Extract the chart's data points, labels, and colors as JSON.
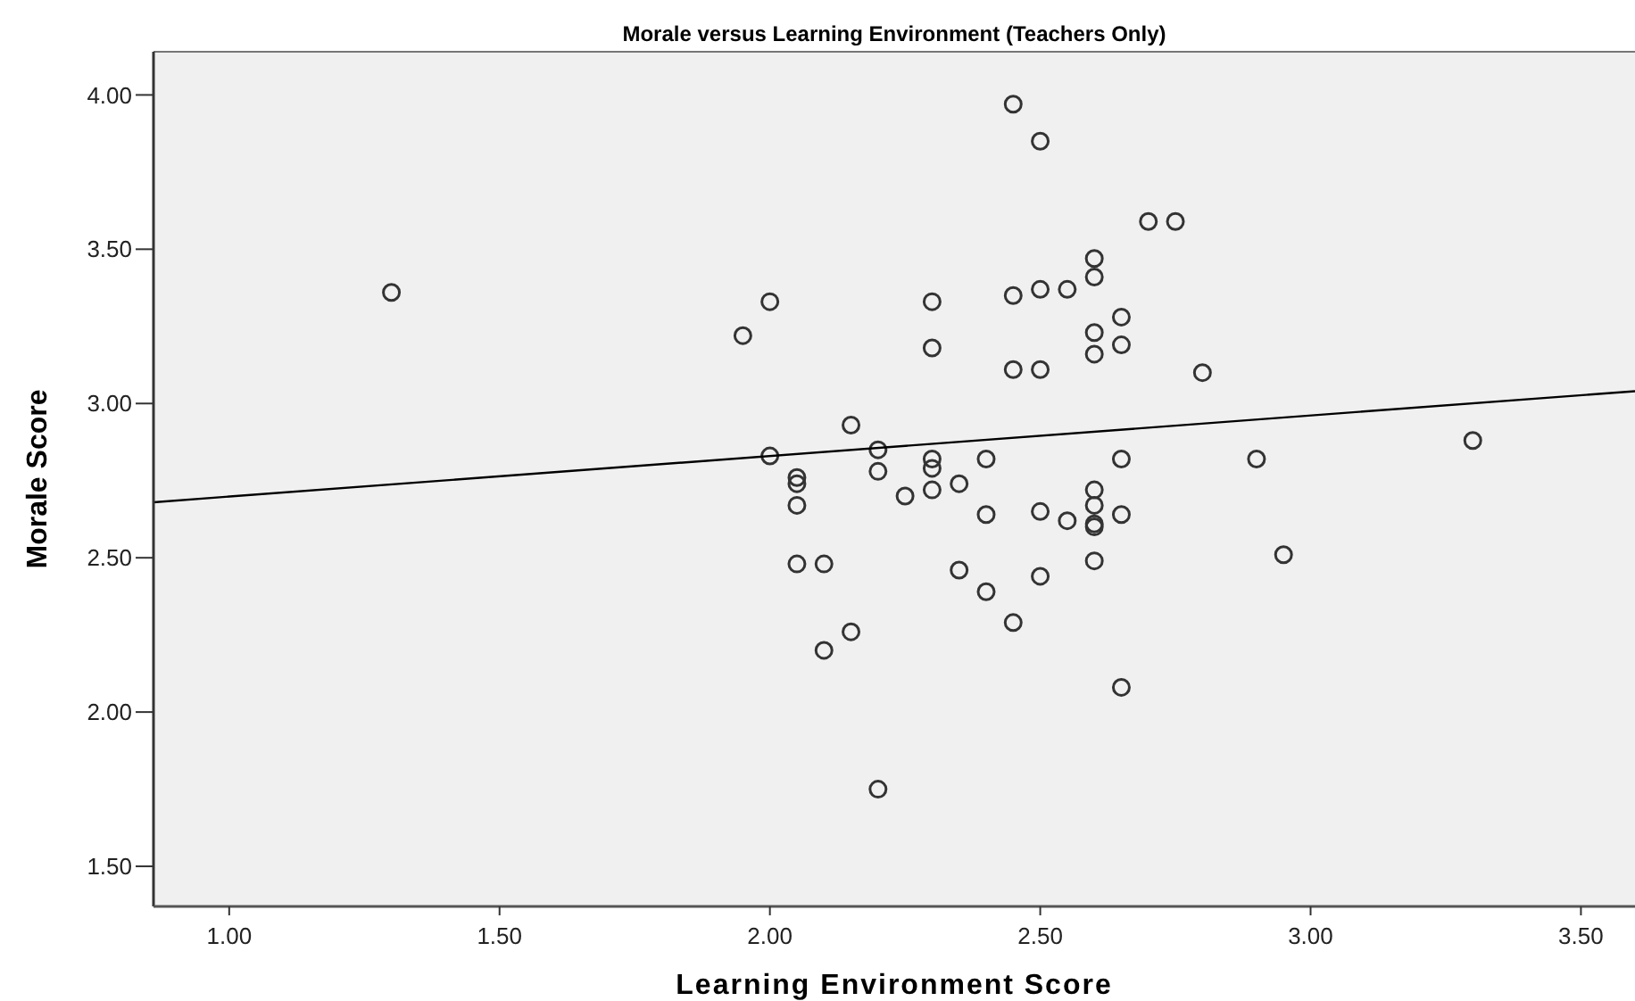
{
  "chart_data": {
    "type": "scatter",
    "title": "Morale versus Learning Environment (Teachers Only)",
    "xlabel": "Learning Environment Score",
    "ylabel": "Morale Score",
    "xlim": [
      0.86,
      3.6
    ],
    "ylim": [
      1.37,
      4.14
    ],
    "xticks": [
      {
        "value": 1,
        "label": "1.00"
      },
      {
        "value": 1.5,
        "label": "1.50"
      },
      {
        "value": 2,
        "label": "2.00"
      },
      {
        "value": 2.5,
        "label": "2.50"
      },
      {
        "value": 3,
        "label": "3.00"
      },
      {
        "value": 3.5,
        "label": "3.50"
      }
    ],
    "yticks": [
      {
        "value": 1.5,
        "label": "1.50"
      },
      {
        "value": 2,
        "label": "2.00"
      },
      {
        "value": 2.5,
        "label": "2.50"
      },
      {
        "value": 3,
        "label": "3.00"
      },
      {
        "value": 3.5,
        "label": "3.50"
      },
      {
        "value": 4,
        "label": "4.00"
      }
    ],
    "grid": false,
    "marker": "circle",
    "series": [
      {
        "color": "#333333",
        "x": [
          1.3,
          2.0,
          1.95,
          2.0,
          2.05,
          2.05,
          2.05,
          2.05,
          2.1,
          2.1,
          2.15,
          2.15,
          2.2,
          2.2,
          2.2,
          2.25,
          2.3,
          2.3,
          2.3,
          2.3,
          2.3,
          2.35,
          2.35,
          2.4,
          2.4,
          2.4,
          2.45,
          2.45,
          2.45,
          2.45,
          2.5,
          2.5,
          2.5,
          2.5,
          2.5,
          2.55,
          2.55,
          2.6,
          2.6,
          2.6,
          2.6,
          2.6,
          2.6,
          2.6,
          2.6,
          2.6,
          2.65,
          2.65,
          2.65,
          2.65,
          2.65,
          2.7,
          2.75,
          2.8,
          2.9,
          2.95,
          3.3
        ],
        "values": [
          3.36,
          3.33,
          3.22,
          2.83,
          2.76,
          2.74,
          2.67,
          2.48,
          2.48,
          2.2,
          2.26,
          2.93,
          2.85,
          2.78,
          1.75,
          2.7,
          3.33,
          3.18,
          2.82,
          2.79,
          2.72,
          2.74,
          2.46,
          2.82,
          2.64,
          2.39,
          3.97,
          3.35,
          3.11,
          2.29,
          3.85,
          3.37,
          3.11,
          2.65,
          2.44,
          3.37,
          2.62,
          3.47,
          3.41,
          3.23,
          3.16,
          2.72,
          2.67,
          2.61,
          2.6,
          2.49,
          3.28,
          3.19,
          2.82,
          2.64,
          2.08,
          3.59,
          3.59,
          3.1,
          2.82,
          2.51,
          2.88
        ]
      },
      {
        "type": "line",
        "color": "#000000",
        "marker": "none",
        "line_style": "solid",
        "x": [
          0.86,
          3.6
        ],
        "values": [
          2.68,
          3.04
        ]
      }
    ]
  }
}
